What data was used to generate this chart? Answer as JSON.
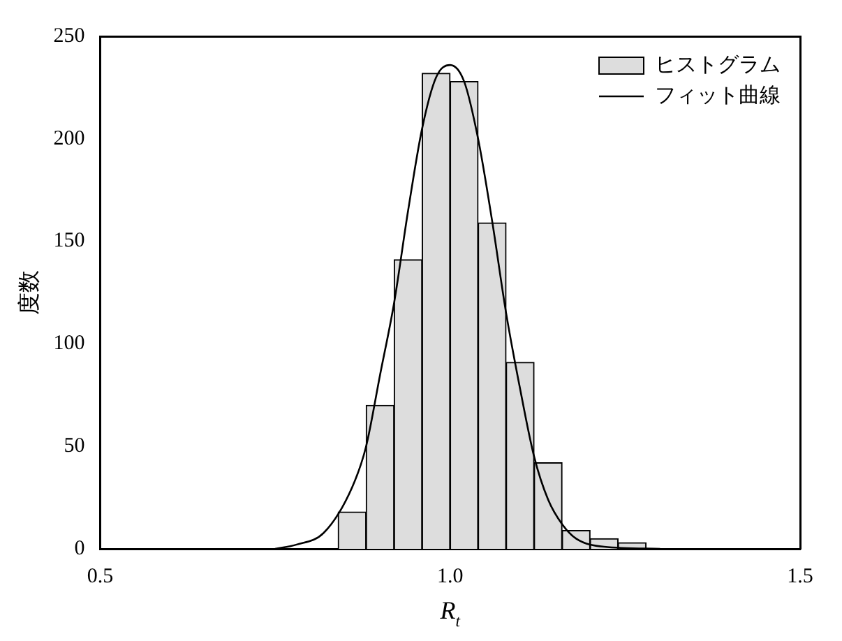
{
  "chart_data": {
    "type": "histogram",
    "xlabel": "R$_{t}$",
    "ylabel": "度数",
    "bins": [
      0.84,
      0.88,
      0.92,
      0.96,
      1.0,
      1.04,
      1.08,
      1.12,
      1.16,
      1.2,
      1.24,
      1.28
    ],
    "series": [
      {
        "name": "ヒストグラム",
        "color": "#dddddd",
        "values": [
          18,
          70,
          141,
          232,
          228,
          159,
          91,
          42,
          9,
          5,
          3
        ]
      },
      {
        "type": "line",
        "name": "フィット曲線",
        "color": "#000000",
        "x": [
          0.75,
          0.78,
          0.82,
          0.86,
          0.88,
          0.9,
          0.92,
          0.94,
          0.96,
          0.98,
          1.0,
          1.02,
          1.04,
          1.06,
          1.08,
          1.1,
          1.12,
          1.14,
          1.16,
          1.18,
          1.22,
          1.3
        ],
        "values": [
          0,
          2,
          8,
          30,
          50,
          85,
          120,
          165,
          205,
          230,
          236,
          228,
          200,
          160,
          115,
          78,
          45,
          24,
          12,
          5,
          1,
          0
        ]
      }
    ],
    "xlim": [
      0.5,
      1.5
    ],
    "xticks": [
      {
        "value": 0.5,
        "label": "0.5"
      },
      {
        "value": 1.0,
        "label": "1.0"
      },
      {
        "value": 1.5,
        "label": "1.5"
      }
    ],
    "ylim": [
      0,
      250
    ],
    "yticks": [
      0,
      50,
      100,
      150,
      200,
      250
    ],
    "grid": false,
    "legend": "top right",
    "marker": "none",
    "line_style": "solid"
  }
}
